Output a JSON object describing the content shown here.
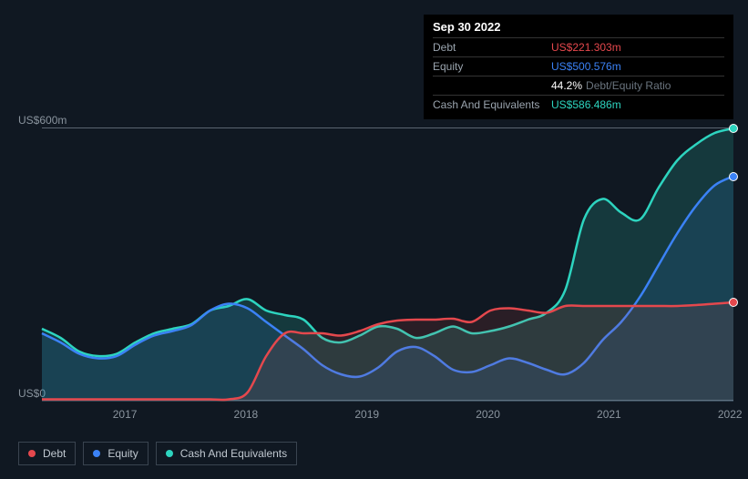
{
  "chart": {
    "type": "area",
    "background_color": "#101822",
    "tooltip": {
      "date": "Sep 30 2022",
      "rows": [
        {
          "label": "Debt",
          "value": "US$221.303m",
          "color": "#e5484d"
        },
        {
          "label": "Equity",
          "value": "US$500.576m",
          "color": "#3b82f6"
        },
        {
          "label": "",
          "value": "44.2%",
          "note": "Debt/Equity Ratio",
          "color": "#ffffff"
        },
        {
          "label": "Cash And Equivalents",
          "value": "US$586.486m",
          "color": "#2dd4bf"
        }
      ]
    },
    "y_axis": {
      "min": 0,
      "max": 600,
      "labels": [
        {
          "text": "US$600m",
          "pos": 0
        },
        {
          "text": "US$0",
          "pos": 1
        }
      ],
      "unit": "US$m"
    },
    "x_axis": {
      "ticks": [
        "2017",
        "2018",
        "2019",
        "2020",
        "2021",
        "2022"
      ],
      "positions": [
        0.12,
        0.295,
        0.47,
        0.645,
        0.82,
        0.995
      ]
    },
    "series": [
      {
        "name": "Cash And Equivalents",
        "color": "#2dd4bf",
        "fill_opacity": 0.18,
        "line_width": 2.5,
        "values": [
          160,
          140,
          110,
          100,
          105,
          130,
          150,
          160,
          170,
          200,
          210,
          225,
          200,
          190,
          180,
          140,
          130,
          145,
          165,
          160,
          140,
          150,
          165,
          150,
          155,
          165,
          180,
          195,
          245,
          400,
          445,
          415,
          400,
          470,
          530,
          565,
          590,
          600
        ]
      },
      {
        "name": "Equity",
        "color": "#3b82f6",
        "fill_opacity": 0.12,
        "line_width": 2.5,
        "values": [
          150,
          130,
          105,
          95,
          100,
          125,
          145,
          155,
          168,
          200,
          215,
          205,
          175,
          145,
          115,
          80,
          60,
          55,
          75,
          110,
          120,
          100,
          70,
          65,
          80,
          95,
          85,
          70,
          60,
          85,
          135,
          175,
          230,
          300,
          370,
          430,
          475,
          495
        ]
      },
      {
        "name": "Debt",
        "color": "#e5484d",
        "fill_opacity": 0.12,
        "line_width": 2.5,
        "values": [
          5,
          5,
          5,
          5,
          5,
          5,
          5,
          5,
          5,
          5,
          5,
          20,
          100,
          150,
          150,
          150,
          145,
          155,
          170,
          178,
          180,
          180,
          182,
          175,
          200,
          205,
          200,
          195,
          210,
          210,
          210,
          210,
          210,
          210,
          210,
          212,
          215,
          218
        ]
      }
    ],
    "legend": [
      {
        "label": "Debt",
        "color": "#e5484d"
      },
      {
        "label": "Equity",
        "color": "#3b82f6"
      },
      {
        "label": "Cash And Equivalents",
        "color": "#2dd4bf"
      }
    ],
    "end_markers": [
      {
        "color": "#2dd4bf",
        "value": 600
      },
      {
        "color": "#3b82f6",
        "value": 495
      },
      {
        "color": "#e5484d",
        "value": 218
      }
    ]
  }
}
